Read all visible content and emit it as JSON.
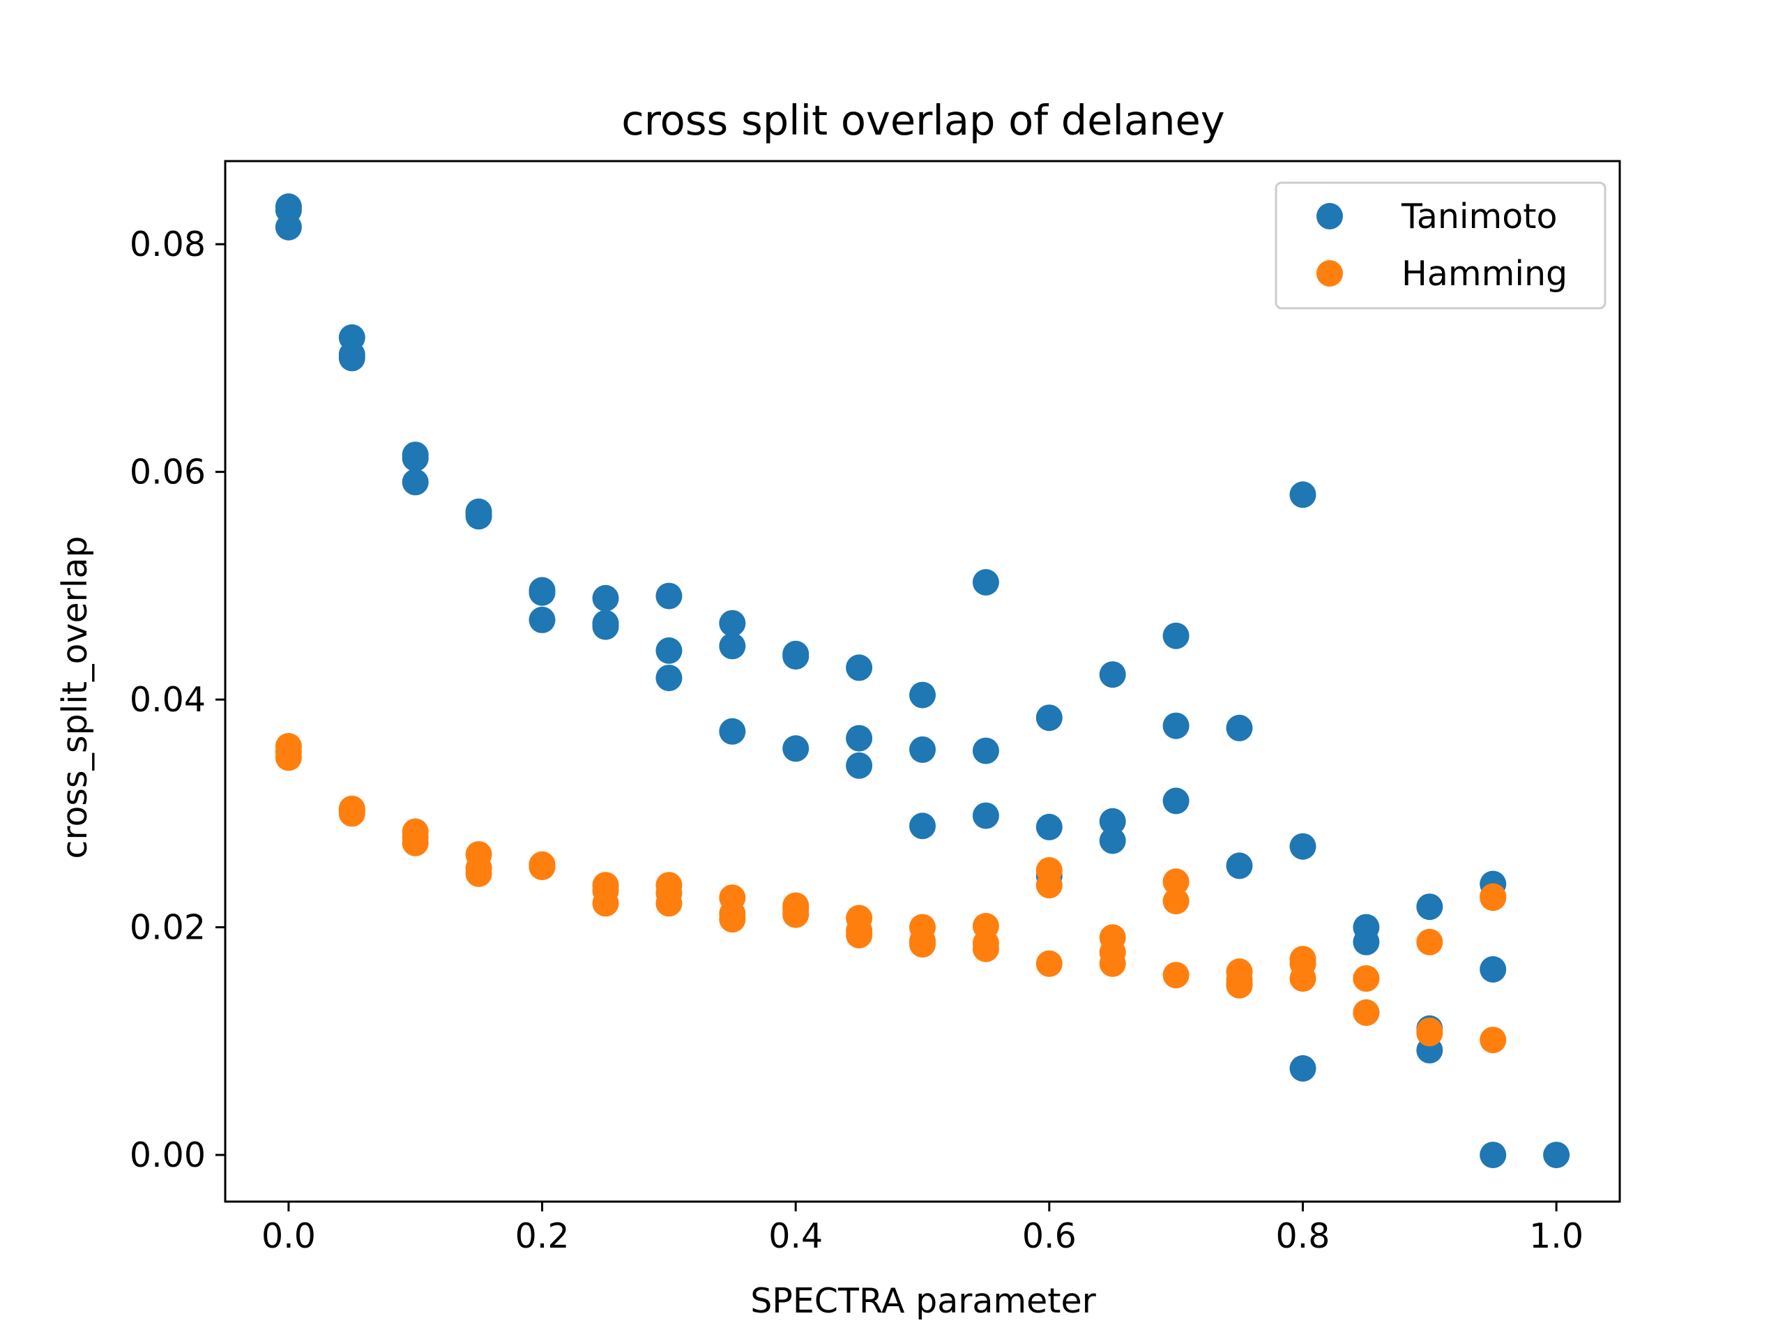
{
  "chart_data": {
    "type": "scatter",
    "title": "cross split overlap of delaney",
    "xlabel": "SPECTRA parameter",
    "ylabel": "cross_split_overlap",
    "xlim": [
      -0.05,
      1.05
    ],
    "ylim": [
      -0.0041,
      0.0873
    ],
    "xticks": [
      0.0,
      0.2,
      0.4,
      0.6,
      0.8,
      1.0
    ],
    "xtick_labels": [
      "0.0",
      "0.2",
      "0.4",
      "0.6",
      "0.8",
      "1.0"
    ],
    "yticks": [
      0.0,
      0.02,
      0.04,
      0.06,
      0.08
    ],
    "ytick_labels": [
      "0.00",
      "0.02",
      "0.04",
      "0.06",
      "0.08"
    ],
    "grid": false,
    "legend": "top-right",
    "series": [
      {
        "name": "Tanimoto",
        "color": "#1f77b4",
        "points": [
          [
            0.0,
            0.0833
          ],
          [
            0.0,
            0.0815
          ],
          [
            0.0,
            0.083
          ],
          [
            0.05,
            0.0718
          ],
          [
            0.05,
            0.07
          ],
          [
            0.05,
            0.0703
          ],
          [
            0.1,
            0.0615
          ],
          [
            0.1,
            0.0591
          ],
          [
            0.1,
            0.0612
          ],
          [
            0.15,
            0.0564
          ],
          [
            0.15,
            0.0561
          ],
          [
            0.15,
            0.0565
          ],
          [
            0.2,
            0.0494
          ],
          [
            0.2,
            0.047
          ],
          [
            0.2,
            0.0496
          ],
          [
            0.25,
            0.0489
          ],
          [
            0.25,
            0.0464
          ],
          [
            0.25,
            0.0467
          ],
          [
            0.3,
            0.0491
          ],
          [
            0.3,
            0.0443
          ],
          [
            0.3,
            0.0419
          ],
          [
            0.35,
            0.0467
          ],
          [
            0.35,
            0.0447
          ],
          [
            0.35,
            0.0372
          ],
          [
            0.4,
            0.044
          ],
          [
            0.4,
            0.0438
          ],
          [
            0.4,
            0.0357
          ],
          [
            0.45,
            0.0428
          ],
          [
            0.45,
            0.0366
          ],
          [
            0.45,
            0.0342
          ],
          [
            0.5,
            0.0404
          ],
          [
            0.5,
            0.0356
          ],
          [
            0.5,
            0.0289
          ],
          [
            0.55,
            0.0503
          ],
          [
            0.55,
            0.0355
          ],
          [
            0.55,
            0.0298
          ],
          [
            0.6,
            0.0384
          ],
          [
            0.6,
            0.0288
          ],
          [
            0.6,
            0.0245
          ],
          [
            0.65,
            0.0422
          ],
          [
            0.65,
            0.0293
          ],
          [
            0.65,
            0.0276
          ],
          [
            0.7,
            0.0456
          ],
          [
            0.7,
            0.0377
          ],
          [
            0.7,
            0.0311
          ],
          [
            0.75,
            0.0375
          ],
          [
            0.75,
            0.0254
          ],
          [
            0.75,
            0.015
          ],
          [
            0.8,
            0.058
          ],
          [
            0.8,
            0.0271
          ],
          [
            0.8,
            0.0076
          ],
          [
            0.85,
            0.02
          ],
          [
            0.85,
            0.0187
          ],
          [
            0.85,
            0.0125
          ],
          [
            0.9,
            0.0218
          ],
          [
            0.9,
            0.0111
          ],
          [
            0.9,
            0.0092
          ],
          [
            0.95,
            0.0238
          ],
          [
            0.95,
            0.0163
          ],
          [
            0.95,
            0.0
          ],
          [
            1.0,
            0.0
          ]
        ]
      },
      {
        "name": "Hamming",
        "color": "#ff7f0e",
        "points": [
          [
            0.0,
            0.0359
          ],
          [
            0.0,
            0.0349
          ],
          [
            0.0,
            0.0354
          ],
          [
            0.05,
            0.0304
          ],
          [
            0.05,
            0.0302
          ],
          [
            0.05,
            0.03
          ],
          [
            0.1,
            0.0284
          ],
          [
            0.1,
            0.0274
          ],
          [
            0.1,
            0.0279
          ],
          [
            0.15,
            0.0264
          ],
          [
            0.15,
            0.0247
          ],
          [
            0.15,
            0.0252
          ],
          [
            0.2,
            0.0255
          ],
          [
            0.2,
            0.0253
          ],
          [
            0.2,
            0.0254
          ],
          [
            0.25,
            0.0237
          ],
          [
            0.25,
            0.0221
          ],
          [
            0.25,
            0.0232
          ],
          [
            0.3,
            0.0237
          ],
          [
            0.3,
            0.0221
          ],
          [
            0.3,
            0.023
          ],
          [
            0.35,
            0.0226
          ],
          [
            0.35,
            0.0207
          ],
          [
            0.35,
            0.0212
          ],
          [
            0.4,
            0.0219
          ],
          [
            0.4,
            0.0211
          ],
          [
            0.4,
            0.0216
          ],
          [
            0.45,
            0.0208
          ],
          [
            0.45,
            0.0193
          ],
          [
            0.45,
            0.0197
          ],
          [
            0.5,
            0.02
          ],
          [
            0.5,
            0.0185
          ],
          [
            0.5,
            0.0188
          ],
          [
            0.55,
            0.0201
          ],
          [
            0.55,
            0.0181
          ],
          [
            0.55,
            0.0186
          ],
          [
            0.6,
            0.025
          ],
          [
            0.6,
            0.0237
          ],
          [
            0.6,
            0.0168
          ],
          [
            0.65,
            0.0191
          ],
          [
            0.65,
            0.0168
          ],
          [
            0.65,
            0.0178
          ],
          [
            0.7,
            0.024
          ],
          [
            0.7,
            0.0223
          ],
          [
            0.7,
            0.0158
          ],
          [
            0.75,
            0.0161
          ],
          [
            0.75,
            0.0149
          ],
          [
            0.75,
            0.0154
          ],
          [
            0.8,
            0.0172
          ],
          [
            0.8,
            0.0155
          ],
          [
            0.8,
            0.0168
          ],
          [
            0.85,
            0.0155
          ],
          [
            0.85,
            0.0125
          ],
          [
            0.85,
            0.0155
          ],
          [
            0.9,
            0.0187
          ],
          [
            0.9,
            0.0107
          ],
          [
            0.9,
            0.0109
          ],
          [
            0.95,
            0.0226
          ],
          [
            0.95,
            0.0101
          ],
          [
            0.95,
            0.0227
          ]
        ]
      }
    ]
  }
}
